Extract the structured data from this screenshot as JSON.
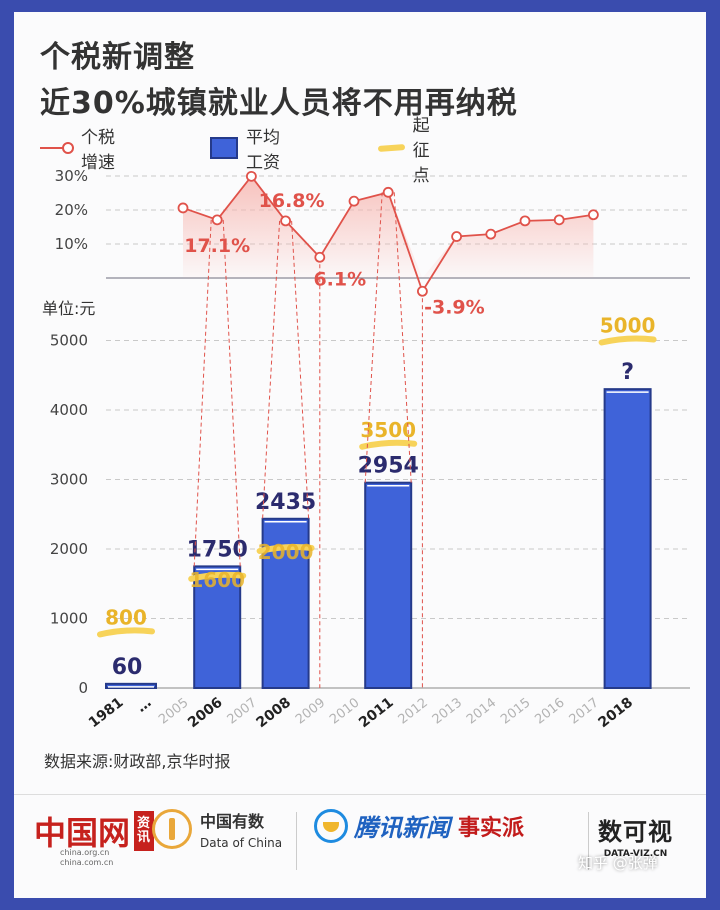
{
  "title_line1": "个税新调整",
  "title_line2": "近30%城镇就业人员将不用再纳税",
  "legend": {
    "growth": "个税增速",
    "wage": "平均工资",
    "threshold": "起征点"
  },
  "colors": {
    "growth": "#e0524a",
    "growth_fill": "#f7b7b1",
    "bar": "#3f63d9",
    "bar_edge": "#253a8a",
    "threshold": "#f7d35a",
    "wage_text": "#2b2b6e",
    "threshold_text": "#e9b42a"
  },
  "unit_label": "单位:元",
  "source": "数据来源:财政部,京华时报",
  "logos": {
    "china_net": "中国网",
    "china_net_tag": "资讯",
    "china_net_domain1": "china.org.cn",
    "china_net_domain2": "china.com.cn",
    "data_of_china_cn": "中国有数",
    "data_of_china_en": "Data of China",
    "tencent_news": "腾讯新闻",
    "tencent_series": "事实派",
    "dataviz_glyph": "数可视",
    "dataviz_site": "DATA-VIZ.CN"
  },
  "watermark": "知乎 @张弹",
  "chart_data": [
    {
      "type": "line",
      "name": "个税增速",
      "x": [
        "2005",
        "2006",
        "2007",
        "2008",
        "2009",
        "2010",
        "2011",
        "2012",
        "2013",
        "2014",
        "2015",
        "2016",
        "2017",
        "2018"
      ],
      "values": [
        20.6,
        17.1,
        29.9,
        16.8,
        6.1,
        22.6,
        25.2,
        -3.9,
        12.2,
        12.9,
        16.8,
        17.1,
        18.6,
        null
      ],
      "unit": "%",
      "yticks": [
        "30%",
        "20%",
        "10%"
      ],
      "ylim": [
        -4,
        32
      ],
      "annotations": [
        {
          "x": "2006",
          "label": "17.1%"
        },
        {
          "x": "2008",
          "label": "16.8%"
        },
        {
          "x": "2009",
          "label": "6.1%"
        },
        {
          "x": "2012",
          "label": "-3.9%"
        }
      ]
    },
    {
      "type": "bar",
      "categories": [
        "1981",
        "…",
        "2005",
        "2006",
        "2007",
        "2008",
        "2009",
        "2010",
        "2011",
        "2012",
        "2013",
        "2014",
        "2015",
        "2016",
        "2017",
        "2018"
      ],
      "highlight_categories": [
        "1981",
        "2006",
        "2008",
        "2011",
        "2018"
      ],
      "series": [
        {
          "name": "平均工资",
          "values": {
            "1981": 60,
            "2006": 1750,
            "2008": 2435,
            "2011": 2954,
            "2018": 4300
          },
          "labels": {
            "1981": "60",
            "2006": "1750",
            "2008": "2435",
            "2011": "2954",
            "2018": "?"
          }
        },
        {
          "name": "起征点",
          "values": {
            "1981": 800,
            "2006": 1600,
            "2008": 2000,
            "2011": 3500,
            "2018": 5000
          },
          "labels": {
            "1981": "800",
            "2006": "1600",
            "2008": "2000",
            "2011": "3500",
            "2018": "5000"
          }
        }
      ],
      "yticks": [
        0,
        1000,
        2000,
        3000,
        4000,
        5000
      ],
      "ylim": [
        0,
        5000
      ],
      "grid": true
    }
  ]
}
